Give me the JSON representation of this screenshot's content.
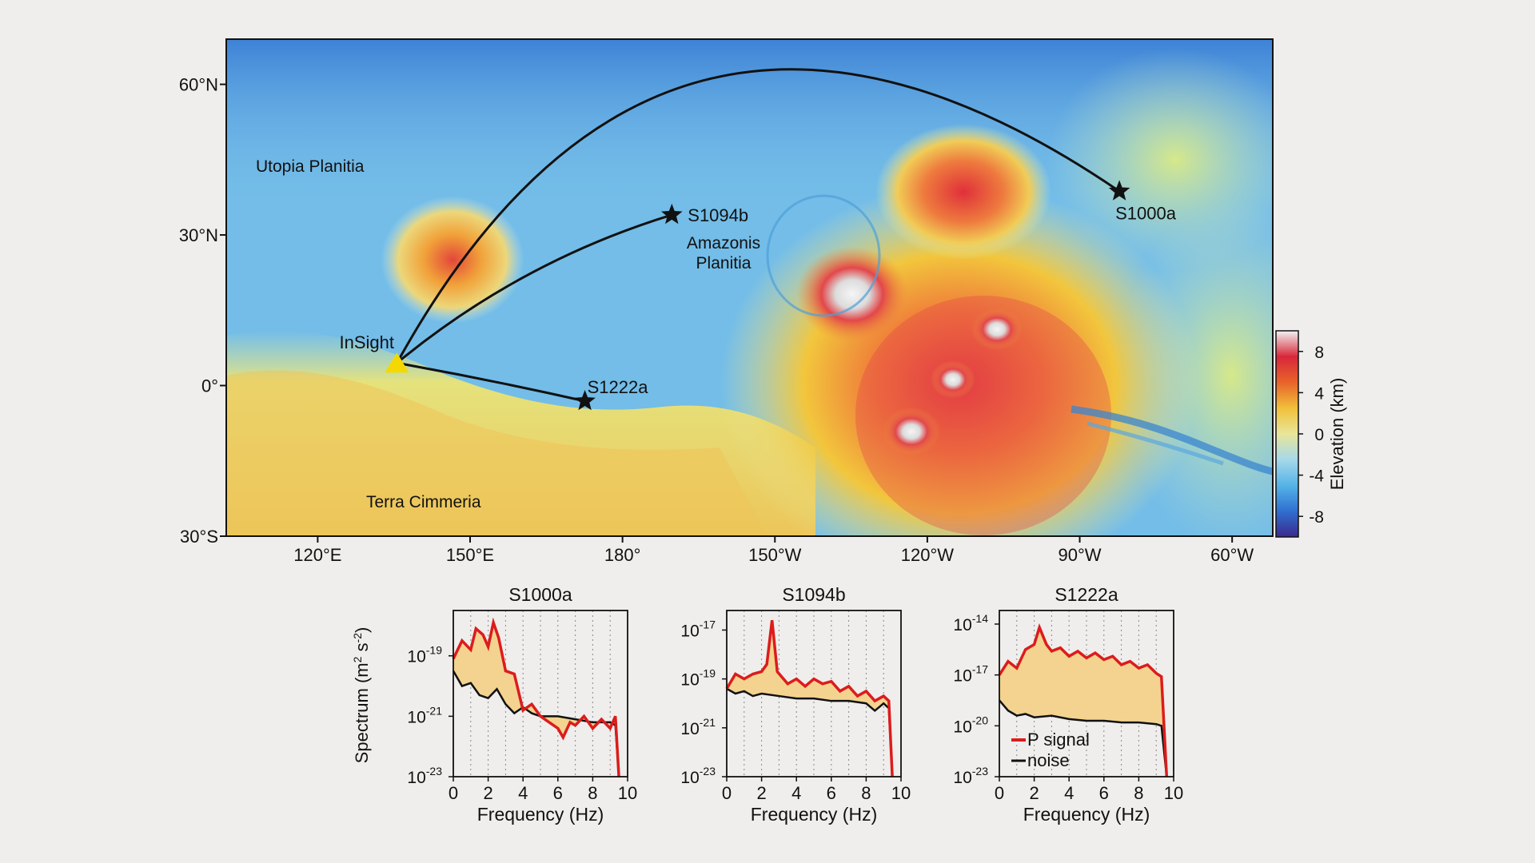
{
  "map": {
    "lat_labels": [
      "60°N",
      "30°N",
      "0°",
      "30°S"
    ],
    "lon_labels": [
      "120°E",
      "150°E",
      "180°",
      "150°W",
      "120°W",
      "90°W",
      "60°W"
    ],
    "regions": [
      "Utopia Planitia",
      "Amazonis",
      "Planitia",
      "Terra Cimmeria"
    ],
    "lander": {
      "name": "InSight",
      "lon_deg": 135.6,
      "lat_deg": 4.5,
      "color": "#f5d800"
    },
    "events": [
      {
        "name": "S1000a",
        "lon_deg": 277.8,
        "lat_deg": 38.7
      },
      {
        "name": "S1094b",
        "lon_deg": 189.7,
        "lat_deg": 34.0
      },
      {
        "name": "S1222a",
        "lon_deg": 172.6,
        "lat_deg": -3.1
      }
    ],
    "colorbar": {
      "label": "Elevation (km)",
      "ticks": [
        "8",
        "4",
        "0",
        "-4",
        "-8"
      ],
      "range": [
        -10,
        10
      ],
      "colors": [
        "#3b2a8c",
        "#2f6fd0",
        "#55b4e6",
        "#a6d8ea",
        "#e8e69a",
        "#f1c03a",
        "#e8632a",
        "#d8273a",
        "#f2f2f2"
      ]
    }
  },
  "spectra": {
    "ylabel": "Spectrum (m² s⁻²)",
    "xlabel": "Frequency (Hz)",
    "legend": {
      "signal": "P signal",
      "noise": "noise"
    },
    "signal_color": "#dc1c1c",
    "noise_color": "#111111",
    "fill_color": "#f3d38f",
    "panels": [
      {
        "title": "S1000a",
        "ylim_exp": [
          -23,
          -17.5
        ],
        "ytick_exps": [
          -19,
          -21,
          -23
        ],
        "signal_log10": [
          [
            0,
            -19.1
          ],
          [
            0.5,
            -18.5
          ],
          [
            1,
            -18.8
          ],
          [
            1.3,
            -18.1
          ],
          [
            1.7,
            -18.3
          ],
          [
            2,
            -18.7
          ],
          [
            2.3,
            -17.9
          ],
          [
            2.6,
            -18.4
          ],
          [
            3,
            -19.5
          ],
          [
            3.5,
            -19.6
          ],
          [
            4,
            -20.8
          ],
          [
            4.5,
            -20.6
          ],
          [
            5,
            -21.0
          ],
          [
            5.5,
            -21.2
          ],
          [
            6,
            -21.4
          ],
          [
            6.3,
            -21.7
          ],
          [
            6.7,
            -21.2
          ],
          [
            7,
            -21.3
          ],
          [
            7.5,
            -21.0
          ],
          [
            8,
            -21.4
          ],
          [
            8.5,
            -21.1
          ],
          [
            9,
            -21.4
          ],
          [
            9.3,
            -21.0
          ],
          [
            9.5,
            -23.0
          ]
        ],
        "noise_log10": [
          [
            0,
            -19.5
          ],
          [
            0.5,
            -20.0
          ],
          [
            1,
            -19.9
          ],
          [
            1.5,
            -20.3
          ],
          [
            2,
            -20.4
          ],
          [
            2.5,
            -20.1
          ],
          [
            3,
            -20.6
          ],
          [
            3.5,
            -20.9
          ],
          [
            4,
            -20.7
          ],
          [
            4.5,
            -20.9
          ],
          [
            5,
            -21.0
          ],
          [
            6,
            -21.0
          ],
          [
            7,
            -21.1
          ],
          [
            8,
            -21.2
          ],
          [
            9,
            -21.2
          ],
          [
            9.3,
            -21.3
          ],
          [
            9.5,
            -23.0
          ]
        ]
      },
      {
        "title": "S1094b",
        "ylim_exp": [
          -23,
          -16.2
        ],
        "ytick_exps": [
          -17,
          -19,
          -21,
          -23
        ],
        "signal_log10": [
          [
            0,
            -19.4
          ],
          [
            0.5,
            -18.8
          ],
          [
            1,
            -19.0
          ],
          [
            1.5,
            -18.8
          ],
          [
            2,
            -18.7
          ],
          [
            2.3,
            -18.4
          ],
          [
            2.6,
            -16.6
          ],
          [
            2.9,
            -18.7
          ],
          [
            3.5,
            -19.2
          ],
          [
            4,
            -19.0
          ],
          [
            4.5,
            -19.3
          ],
          [
            5,
            -19.0
          ],
          [
            5.5,
            -19.2
          ],
          [
            6,
            -19.1
          ],
          [
            6.5,
            -19.5
          ],
          [
            7,
            -19.3
          ],
          [
            7.5,
            -19.7
          ],
          [
            8,
            -19.5
          ],
          [
            8.5,
            -19.9
          ],
          [
            9,
            -19.7
          ],
          [
            9.3,
            -19.9
          ],
          [
            9.5,
            -23.0
          ]
        ],
        "noise_log10": [
          [
            0,
            -19.4
          ],
          [
            0.5,
            -19.6
          ],
          [
            1,
            -19.5
          ],
          [
            1.5,
            -19.7
          ],
          [
            2,
            -19.6
          ],
          [
            3,
            -19.7
          ],
          [
            4,
            -19.8
          ],
          [
            5,
            -19.8
          ],
          [
            6,
            -19.9
          ],
          [
            7,
            -19.9
          ],
          [
            8,
            -20.0
          ],
          [
            8.5,
            -20.3
          ],
          [
            9,
            -20.0
          ],
          [
            9.3,
            -20.2
          ],
          [
            9.5,
            -23.0
          ]
        ]
      },
      {
        "title": "S1222a",
        "ylim_exp": [
          -23,
          -13.2
        ],
        "ytick_exps": [
          -14,
          -17,
          -20,
          -23
        ],
        "signal_log10": [
          [
            0,
            -17.0
          ],
          [
            0.5,
            -16.2
          ],
          [
            1,
            -16.6
          ],
          [
            1.5,
            -15.5
          ],
          [
            2,
            -15.2
          ],
          [
            2.3,
            -14.2
          ],
          [
            2.7,
            -15.2
          ],
          [
            3,
            -15.6
          ],
          [
            3.5,
            -15.4
          ],
          [
            4,
            -15.9
          ],
          [
            4.5,
            -15.6
          ],
          [
            5,
            -16.0
          ],
          [
            5.5,
            -15.7
          ],
          [
            6,
            -16.1
          ],
          [
            6.5,
            -15.9
          ],
          [
            7,
            -16.4
          ],
          [
            7.5,
            -16.2
          ],
          [
            8,
            -16.6
          ],
          [
            8.5,
            -16.4
          ],
          [
            9,
            -16.9
          ],
          [
            9.3,
            -17.1
          ],
          [
            9.6,
            -23.0
          ]
        ],
        "noise_log10": [
          [
            0,
            -18.5
          ],
          [
            0.5,
            -19.1
          ],
          [
            1,
            -19.4
          ],
          [
            1.5,
            -19.3
          ],
          [
            2,
            -19.5
          ],
          [
            3,
            -19.4
          ],
          [
            4,
            -19.6
          ],
          [
            5,
            -19.7
          ],
          [
            6,
            -19.7
          ],
          [
            7,
            -19.8
          ],
          [
            8,
            -19.8
          ],
          [
            9,
            -19.9
          ],
          [
            9.3,
            -20.0
          ],
          [
            9.6,
            -23.0
          ]
        ]
      }
    ]
  }
}
